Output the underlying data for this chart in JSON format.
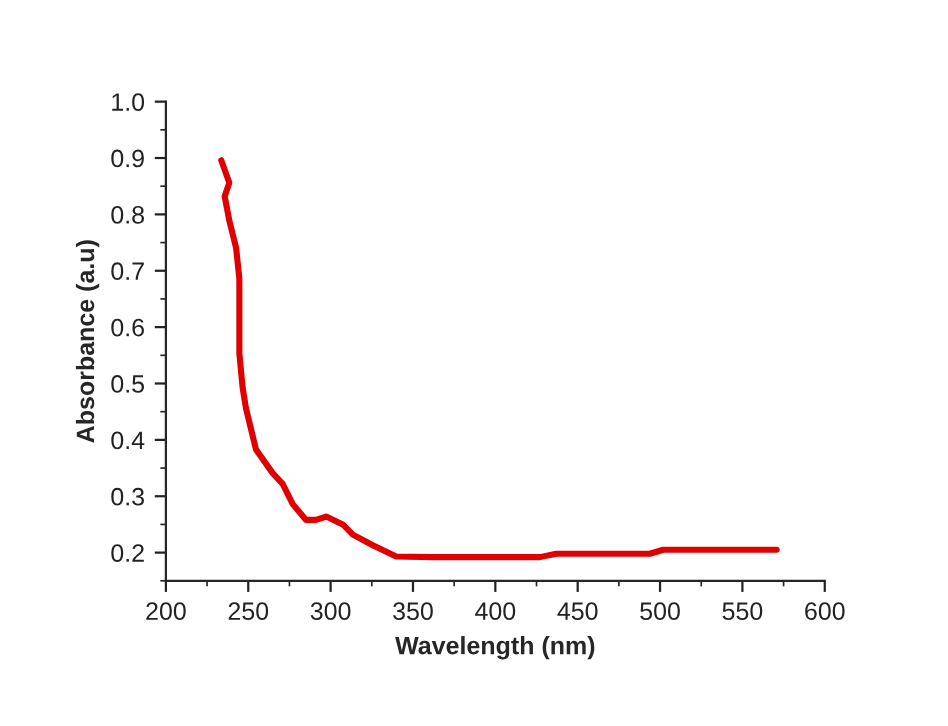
{
  "chart_data": {
    "type": "line",
    "xlabel": "Wavelength (nm)",
    "ylabel": "Absorbance (a.u)",
    "x": [
      233.6,
      238.5,
      235.7,
      238.5,
      242.6,
      244.6,
      244.6,
      246.6,
      248.6,
      254.7,
      264.8,
      270.9,
      277.0,
      285.1,
      291.2,
      297.3,
      307.4,
      313.5,
      325.6,
      339.8,
      362.1,
      427.0,
      437.0,
      493.8,
      501.9,
      570.8
    ],
    "series": [
      {
        "color": "#e00000",
        "values": [
          0.896,
          0.856,
          0.832,
          0.789,
          0.741,
          0.686,
          0.553,
          0.492,
          0.456,
          0.383,
          0.341,
          0.322,
          0.286,
          0.258,
          0.258,
          0.264,
          0.25,
          0.232,
          0.213,
          0.193,
          0.192,
          0.192,
          0.198,
          0.198,
          0.205,
          0.205
        ]
      }
    ],
    "xlim": [
      200,
      600
    ],
    "ylim": [
      0.15,
      1.0
    ],
    "xticks": [
      200,
      250,
      300,
      350,
      400,
      450,
      500,
      550,
      600
    ],
    "yticks": [
      0.2,
      0.3,
      0.4,
      0.5,
      0.6,
      0.7,
      0.8,
      0.9,
      {
        "value": 1.0,
        "label": "1.0"
      }
    ],
    "grid": false,
    "marker": "none",
    "line_style": "solid"
  }
}
